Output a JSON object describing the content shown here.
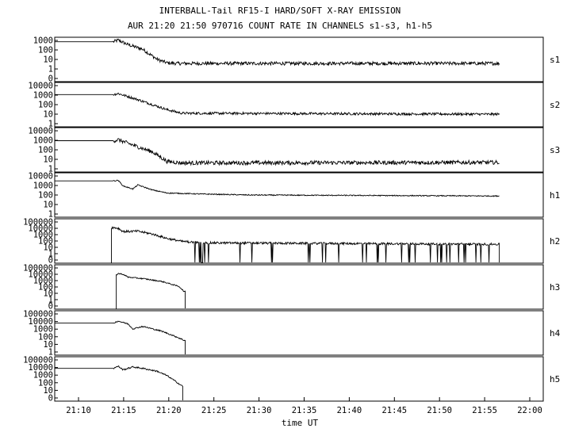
{
  "chart_data": {
    "type": "line",
    "title": "INTERBALL-Tail RF15-I HARD/SOFT X-RAY EMISSION",
    "subtitle": "AUR 21:20 21:50 970716  COUNT RATE IN CHANNELS s1-s3, h1-h5",
    "xlabel": "time UT",
    "x_ticks": [
      "21:10",
      "21:15",
      "21:20",
      "21:25",
      "21:30",
      "21:35",
      "21:40",
      "21:45",
      "21:50",
      "21:55",
      "22:00"
    ],
    "x_range_minutes": [
      21.1,
      22.1
    ],
    "panels": [
      {
        "name": "s1",
        "y_ticks": [
          "1000",
          "100",
          "10",
          "1",
          "0"
        ],
        "ylim_log10": [
          -0.7,
          3.2
        ],
        "keypoints": [
          [
            21.1,
            2.8
          ],
          [
            21.22,
            2.8
          ],
          [
            21.23,
            2.95
          ],
          [
            21.25,
            2.55
          ],
          [
            21.28,
            2.15
          ],
          [
            21.31,
            1.25
          ],
          [
            21.33,
            0.95
          ],
          [
            21.35,
            0.9
          ],
          [
            22.01,
            0.9
          ]
        ],
        "noise": 0.15,
        "end_min": 22.01
      },
      {
        "name": "s2",
        "y_ticks": [
          "10000",
          "1000",
          "100",
          "10",
          "1"
        ],
        "ylim_log10": [
          -0.2,
          4.2
        ],
        "keypoints": [
          [
            21.1,
            3.0
          ],
          [
            21.22,
            3.0
          ],
          [
            21.23,
            3.1
          ],
          [
            21.27,
            2.5
          ],
          [
            21.33,
            1.5
          ],
          [
            21.36,
            1.15
          ],
          [
            22.01,
            1.05
          ]
        ],
        "noise": 0.12,
        "end_min": 22.01
      },
      {
        "name": "s3",
        "y_ticks": [
          "10000",
          "1000",
          "100",
          "10",
          "1"
        ],
        "ylim_log10": [
          -0.2,
          4.2
        ],
        "keypoints": [
          [
            21.1,
            2.9
          ],
          [
            21.22,
            2.9
          ],
          [
            21.23,
            3.0
          ],
          [
            21.27,
            2.3
          ],
          [
            21.3,
            1.8
          ],
          [
            21.33,
            0.85
          ],
          [
            21.36,
            0.7
          ],
          [
            22.01,
            0.75
          ]
        ],
        "noise": 0.2,
        "end_min": 22.01
      },
      {
        "name": "h1",
        "y_ticks": [
          "10000",
          "1000",
          "100",
          "10",
          "1"
        ],
        "ylim_log10": [
          -0.2,
          4.2
        ],
        "keypoints": [
          [
            21.1,
            3.4
          ],
          [
            21.22,
            3.4
          ],
          [
            21.23,
            3.45
          ],
          [
            21.24,
            2.9
          ],
          [
            21.26,
            2.6
          ],
          [
            21.27,
            3.0
          ],
          [
            21.3,
            2.5
          ],
          [
            21.33,
            2.2
          ],
          [
            21.4,
            2.1
          ],
          [
            21.5,
            2.0
          ],
          [
            22.01,
            1.9
          ]
        ],
        "noise": 0.05,
        "end_min": 22.01
      },
      {
        "name": "h2",
        "y_ticks": [
          "100000",
          "10000",
          "1000",
          "100",
          "10",
          "1",
          "0"
        ],
        "ylim_log10": [
          -0.9,
          5.2
        ],
        "keypoints": [
          [
            21.216,
            4.0
          ],
          [
            21.22,
            4.0
          ],
          [
            21.23,
            3.9
          ],
          [
            21.24,
            3.45
          ],
          [
            21.27,
            3.5
          ],
          [
            21.3,
            3.1
          ],
          [
            21.33,
            2.5
          ],
          [
            21.36,
            2.1
          ],
          [
            21.4,
            1.9
          ],
          [
            22.01,
            1.7
          ]
        ],
        "noise": 0.15,
        "start_min": 21.216,
        "end_min": 22.01,
        "dropouts": true
      },
      {
        "name": "h3",
        "y_ticks": [
          "100000",
          "10000",
          "1000",
          "100",
          "10",
          "1",
          "0"
        ],
        "ylim_log10": [
          -0.9,
          5.2
        ],
        "keypoints": [
          [
            21.226,
            3.8
          ],
          [
            21.23,
            4.0
          ],
          [
            21.24,
            3.9
          ],
          [
            21.25,
            3.5
          ],
          [
            21.28,
            3.3
          ],
          [
            21.32,
            2.9
          ],
          [
            21.355,
            2.2
          ],
          [
            21.365,
            1.5
          ]
        ],
        "noise": 0.08,
        "start_min": 21.226,
        "end_min": 21.367
      },
      {
        "name": "h4",
        "y_ticks": [
          "100000",
          "10000",
          "1000",
          "100",
          "10",
          "1"
        ],
        "ylim_log10": [
          -0.2,
          5.2
        ],
        "keypoints": [
          [
            21.1,
            3.7
          ],
          [
            21.22,
            3.7
          ],
          [
            21.23,
            3.95
          ],
          [
            21.25,
            3.6
          ],
          [
            21.26,
            3.0
          ],
          [
            21.28,
            3.3
          ],
          [
            21.32,
            2.7
          ],
          [
            21.35,
            2.0
          ],
          [
            21.365,
            1.6
          ]
        ],
        "noise": 0.08,
        "end_min": 21.367
      },
      {
        "name": "h5",
        "y_ticks": [
          "100000",
          "10000",
          "1000",
          "100",
          "10",
          "0"
        ],
        "ylim_log10": [
          -0.9,
          5.2
        ],
        "keypoints": [
          [
            21.1,
            3.6
          ],
          [
            21.22,
            3.6
          ],
          [
            21.23,
            3.9
          ],
          [
            21.24,
            3.4
          ],
          [
            21.26,
            3.8
          ],
          [
            21.28,
            3.6
          ],
          [
            21.31,
            3.2
          ],
          [
            21.33,
            2.6
          ],
          [
            21.35,
            1.7
          ],
          [
            21.36,
            1.2
          ]
        ],
        "noise": 0.1,
        "end_min": 21.362,
        "dropouts": true
      }
    ]
  }
}
